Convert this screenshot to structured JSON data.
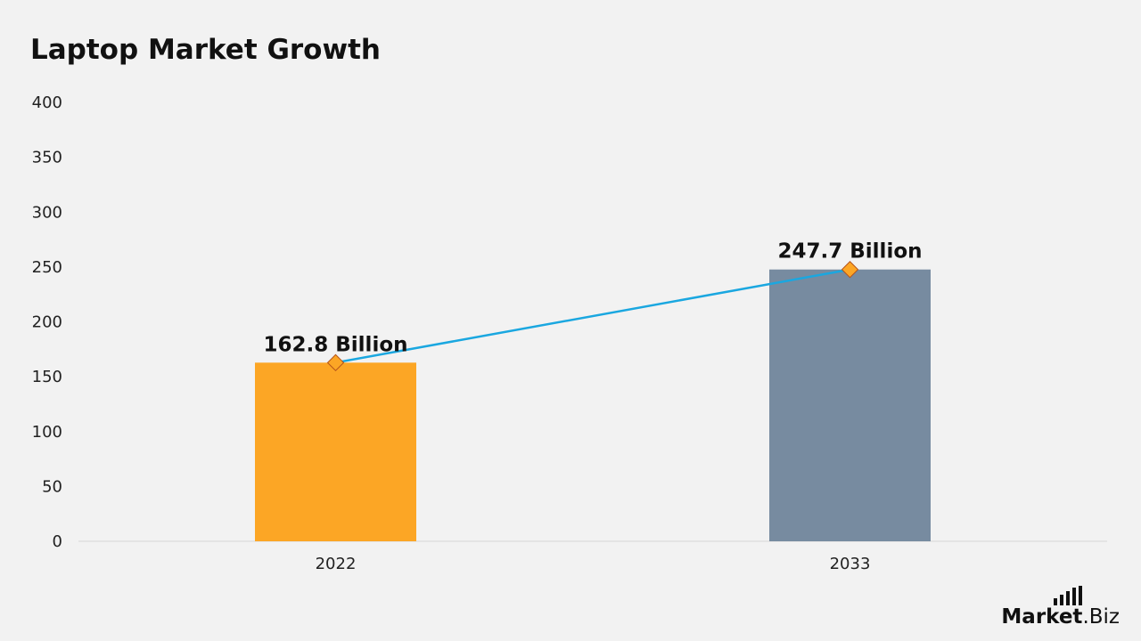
{
  "chart_data": {
    "type": "bar",
    "title": "Laptop Market Growth",
    "categories": [
      "2022",
      "2033"
    ],
    "values": [
      162.8,
      247.7
    ],
    "data_labels": [
      "162.8 Billion",
      "247.7 Billion"
    ],
    "bar_colors": [
      "#fca625",
      "#778ba0"
    ],
    "line_color": "#1aa7e0",
    "marker_color": "#fca625",
    "ylim": [
      0,
      400
    ],
    "yticks": [
      "0",
      "50",
      "100",
      "150",
      "200",
      "250",
      "300",
      "350",
      "400"
    ],
    "xlabel": "",
    "ylabel": "",
    "grid": false,
    "legend": "none"
  },
  "branding": {
    "brand": "Market",
    "tld": ".Biz"
  }
}
